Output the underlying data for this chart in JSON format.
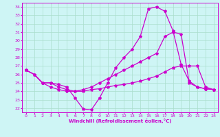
{
  "xlabel": "Windchill (Refroidissement éolien,°C)",
  "xlim": [
    -0.5,
    23.5
  ],
  "ylim": [
    21.5,
    34.5
  ],
  "yticks": [
    22,
    23,
    24,
    25,
    26,
    27,
    28,
    29,
    30,
    31,
    32,
    33,
    34
  ],
  "xticks": [
    0,
    1,
    2,
    3,
    4,
    5,
    6,
    7,
    8,
    9,
    10,
    11,
    12,
    13,
    14,
    15,
    16,
    17,
    18,
    19,
    20,
    21,
    22,
    23
  ],
  "bg_color": "#cef5f5",
  "line_color": "#cc00cc",
  "grid_color": "#aaddcc",
  "line1_y": [
    26.5,
    26.0,
    25.0,
    25.0,
    24.8,
    24.5,
    23.2,
    21.9,
    21.8,
    23.2,
    25.0,
    26.8,
    28.0,
    29.0,
    30.5,
    33.8,
    34.0,
    33.5,
    31.2,
    27.2,
    25.2,
    24.5,
    24.3,
    24.2
  ],
  "line2_y": [
    26.5,
    26.0,
    25.0,
    25.0,
    24.5,
    24.2,
    24.0,
    24.2,
    24.5,
    25.0,
    25.5,
    26.0,
    26.5,
    27.0,
    27.5,
    28.0,
    28.5,
    30.5,
    31.0,
    30.8,
    25.0,
    24.5,
    24.3,
    24.2
  ],
  "line3_y": [
    26.5,
    26.0,
    25.0,
    24.5,
    24.2,
    24.0,
    24.0,
    24.0,
    24.2,
    24.3,
    24.5,
    24.7,
    24.8,
    25.0,
    25.2,
    25.5,
    25.8,
    26.3,
    26.8,
    27.0,
    27.0,
    27.0,
    24.5,
    24.2
  ]
}
